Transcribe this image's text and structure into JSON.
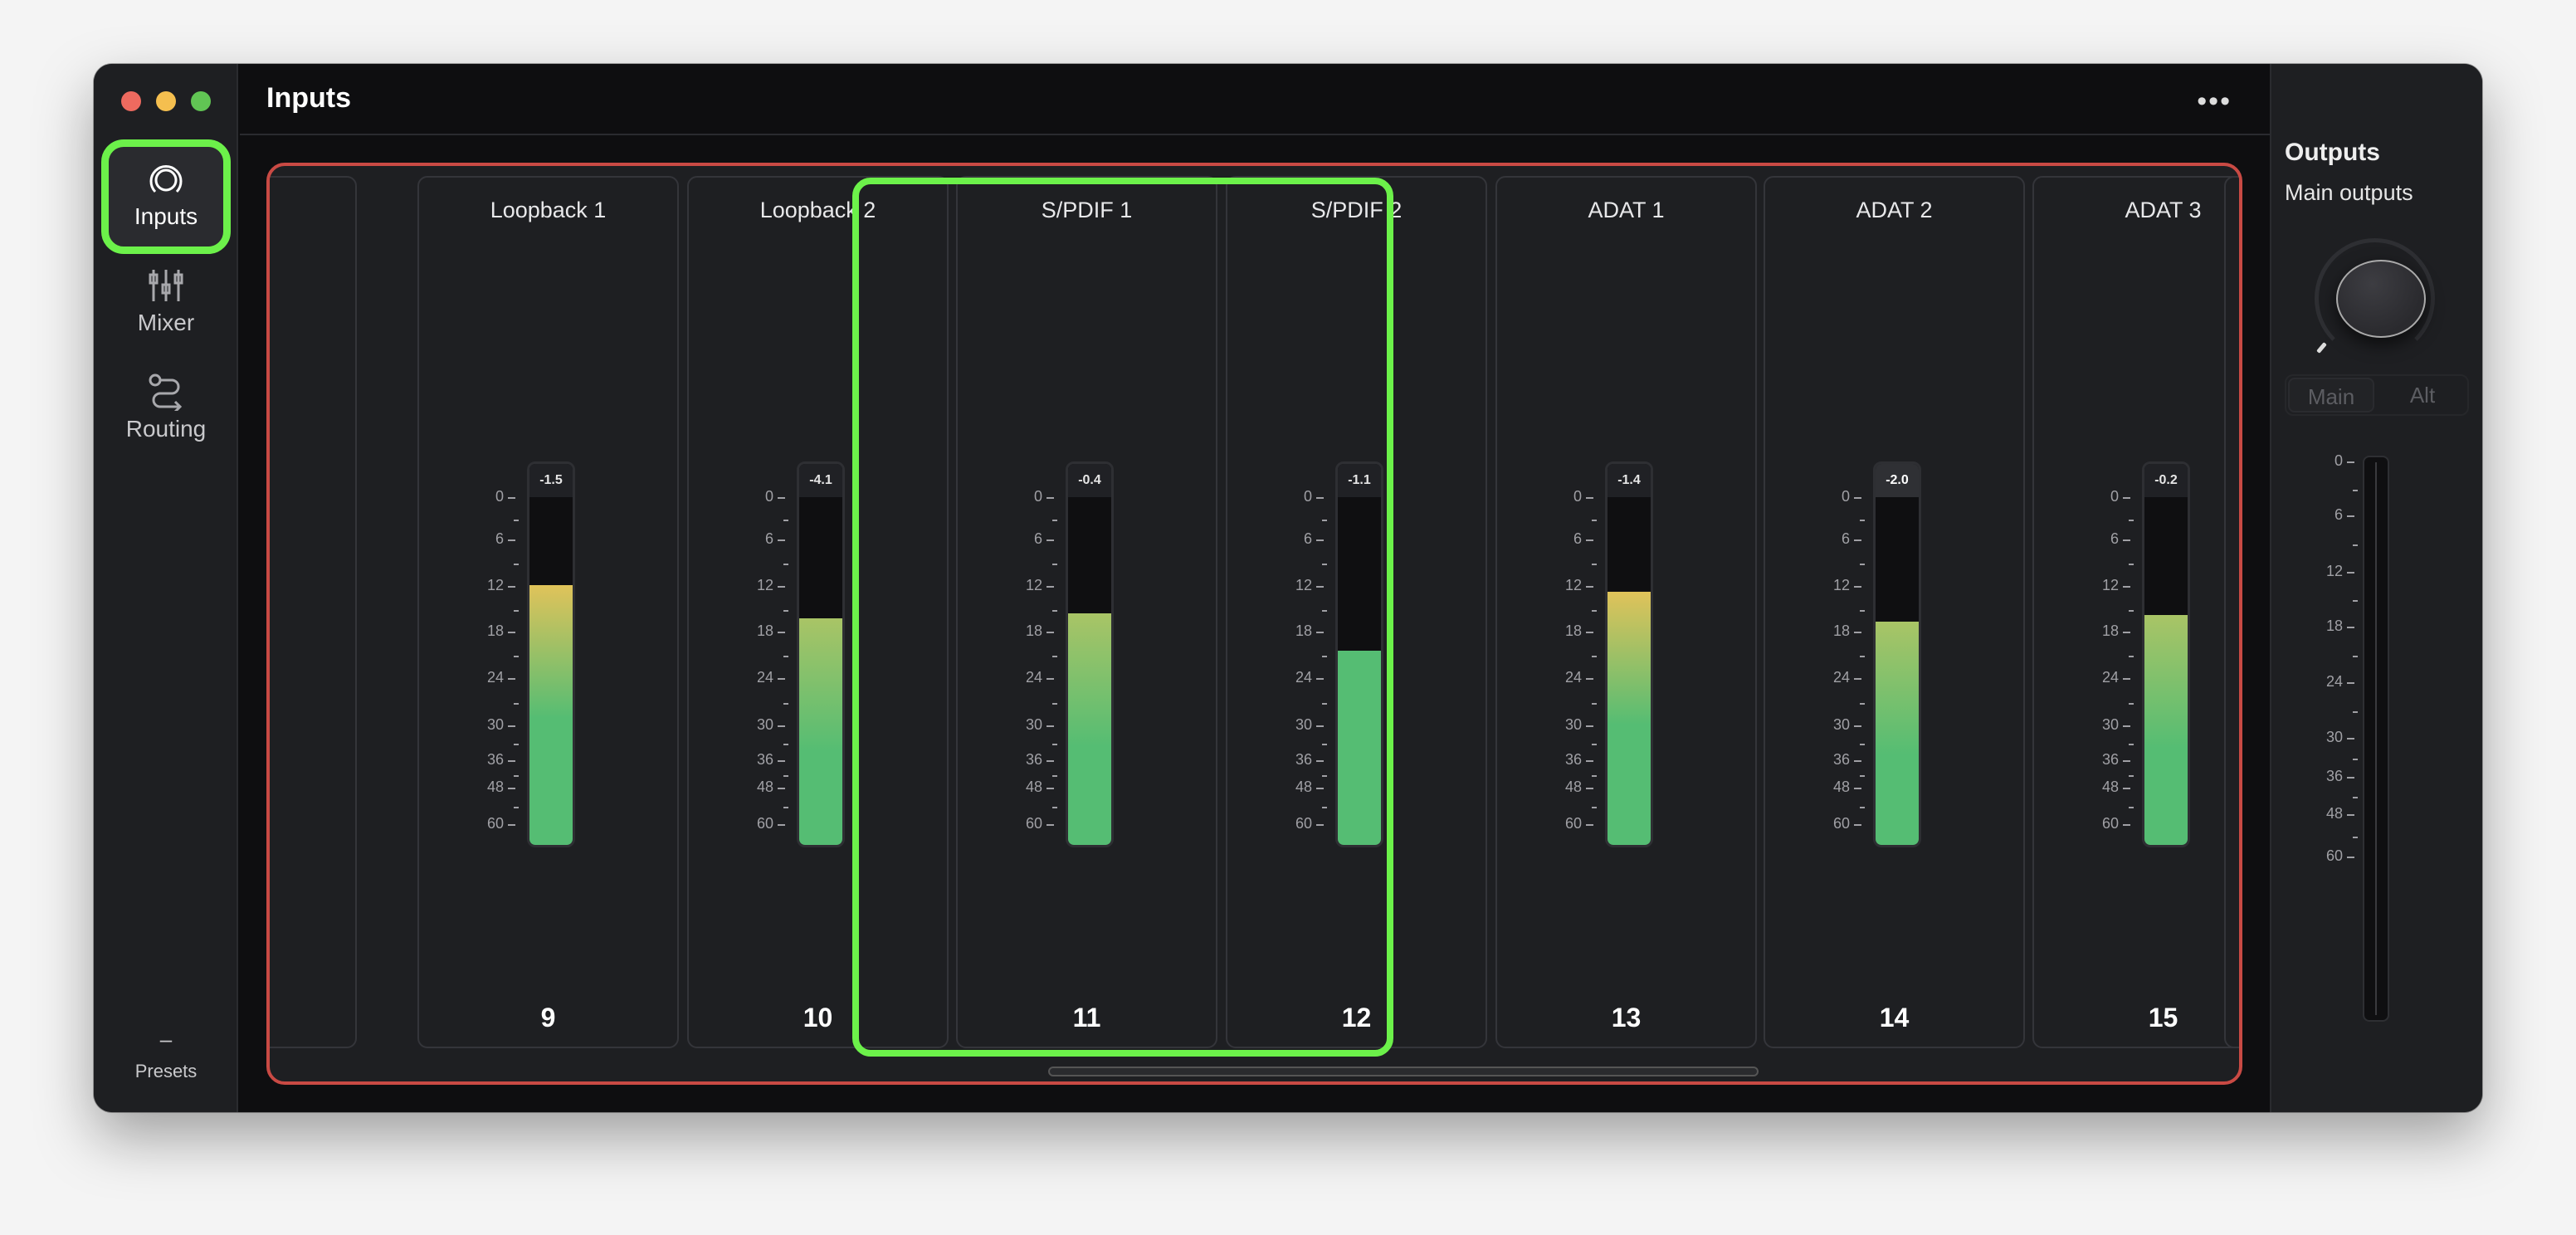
{
  "window": {
    "traffic_lights": [
      "#ee6a5f",
      "#f5bf4f",
      "#61c554"
    ]
  },
  "sidebar": {
    "items": [
      {
        "label": "Inputs",
        "icon": "inputs-icon",
        "active": true
      },
      {
        "label": "Mixer",
        "icon": "mixer-sliders-icon",
        "active": false
      },
      {
        "label": "Routing",
        "icon": "routing-icon",
        "active": false
      }
    ],
    "presets": {
      "value": "–",
      "label": "Presets"
    }
  },
  "header": {
    "title": "Inputs",
    "more_icon": "ellipsis-icon"
  },
  "meter_scale": [
    "0",
    "6",
    "12",
    "18",
    "24",
    "30",
    "36",
    "48",
    "60"
  ],
  "channels": [
    {
      "name": "Loopback 1",
      "number": "9",
      "peak": "-1.5",
      "level_db": 11.5
    },
    {
      "name": "Loopback 2",
      "number": "10",
      "peak": "-4.1",
      "level_db": 15.8
    },
    {
      "name": "S/PDIF 1",
      "number": "11",
      "peak": "-0.4",
      "level_db": 15.2
    },
    {
      "name": "S/PDIF 2",
      "number": "12",
      "peak": "-1.1",
      "level_db": 20
    },
    {
      "name": "ADAT 1",
      "number": "13",
      "peak": "-1.4",
      "level_db": 12.3
    },
    {
      "name": "ADAT 2",
      "number": "14",
      "peak": "-2.0",
      "level_db": 16.2,
      "hovered": true
    },
    {
      "name": "ADAT 3",
      "number": "15",
      "peak": "-0.2",
      "level_db": 15.4
    }
  ],
  "highlight": {
    "channels": [
      "S/PDIF 1",
      "S/PDIF 2"
    ],
    "color": "#6cf14a"
  },
  "selection_color": "#c94a44",
  "outputs": {
    "title": "Outputs",
    "subtitle": "Main outputs",
    "knob_level": 0,
    "toggle": {
      "options": [
        "Main",
        "Alt"
      ],
      "selected": "Main"
    },
    "meter_level_db": null
  },
  "colors": {
    "meter_green": "#55bd73",
    "meter_yellow": "#e0c35a"
  }
}
